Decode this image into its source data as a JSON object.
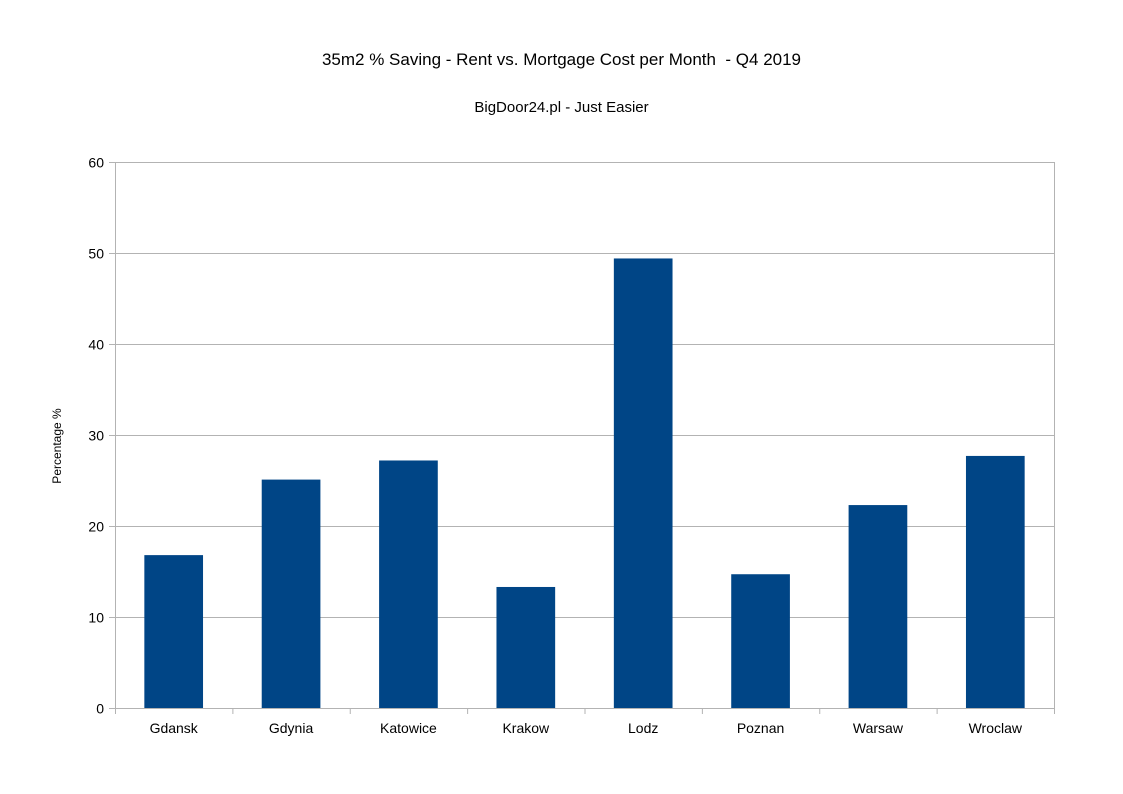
{
  "chart_data": {
    "type": "bar",
    "title": "35m2 % Saving - Rent vs. Mortgage Cost per Month  - Q4 2019",
    "subtitle": "BigDoor24.pl - Just Easier",
    "xlabel": "",
    "ylabel": "Percentage %",
    "categories": [
      "Gdansk",
      "Gdynia",
      "Katowice",
      "Krakow",
      "Lodz",
      "Poznan",
      "Warsaw",
      "Wroclaw"
    ],
    "values": [
      16.8,
      25.1,
      27.2,
      13.3,
      49.4,
      14.7,
      22.3,
      27.7
    ],
    "ylim": [
      0,
      60
    ],
    "yticks": [
      0,
      10,
      20,
      30,
      40,
      50,
      60
    ],
    "grid": true,
    "legend": "none",
    "bar_color": "#004586",
    "grid_color": "#b3b3b3"
  }
}
